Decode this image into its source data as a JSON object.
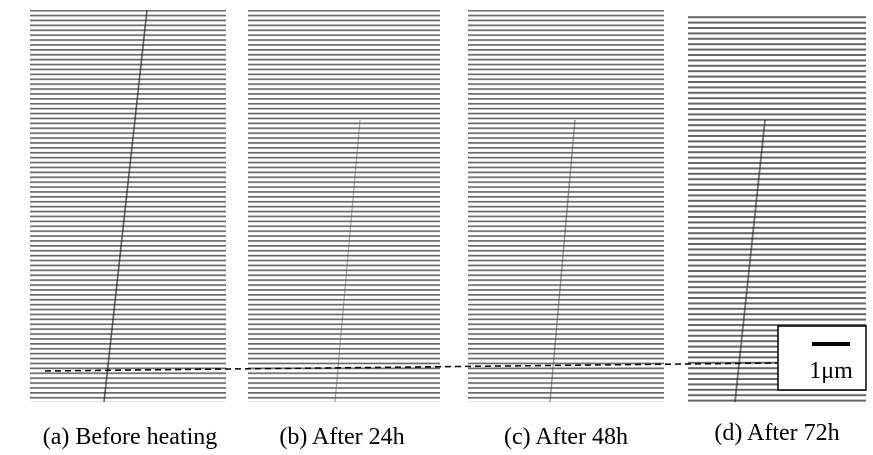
{
  "captions": [
    "(a) Before heating",
    "(b) After 24h",
    "(c) After 48h",
    "(d) After 72h"
  ],
  "scale_bar": {
    "label": "1μm"
  }
}
